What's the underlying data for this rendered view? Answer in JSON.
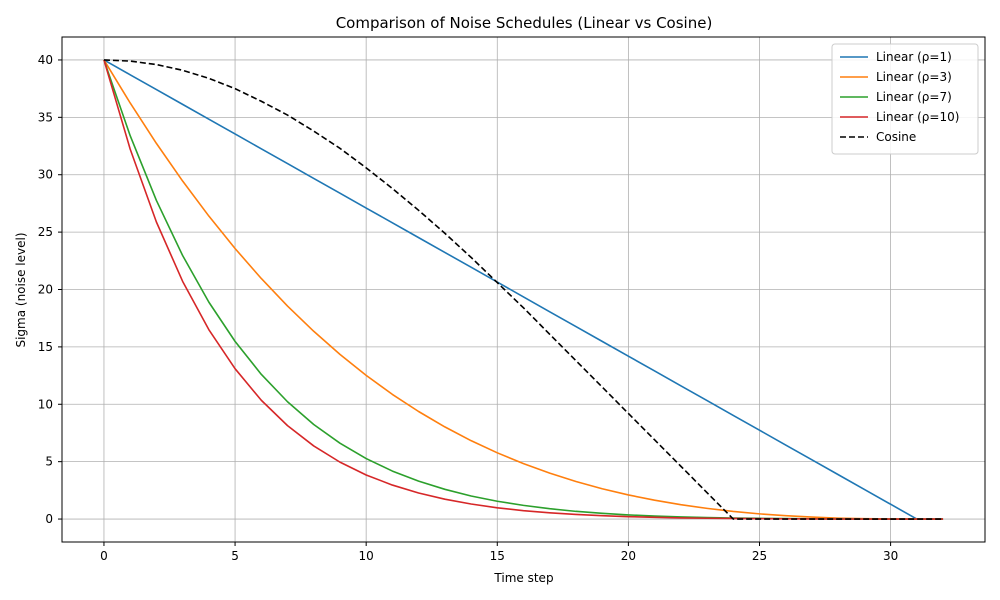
{
  "chart_data": {
    "type": "line",
    "title": "Comparison of Noise Schedules (Linear vs Cosine)",
    "xlabel": "Time step",
    "ylabel": "Sigma (noise level)",
    "xlim": [
      -1.6,
      33.6
    ],
    "ylim": [
      -2,
      42
    ],
    "xticks": [
      0,
      5,
      10,
      15,
      20,
      25,
      30
    ],
    "yticks": [
      0,
      5,
      10,
      15,
      20,
      25,
      30,
      35,
      40
    ],
    "grid": true,
    "legend_position": "top-right",
    "x": [
      0,
      1,
      2,
      3,
      4,
      5,
      6,
      7,
      8,
      9,
      10,
      11,
      12,
      13,
      14,
      15,
      16,
      17,
      18,
      19,
      20,
      21,
      22,
      23,
      24,
      25,
      26,
      27,
      28,
      29,
      30,
      31,
      32
    ],
    "series": [
      {
        "name": "Linear (ρ=1)",
        "color": "#1f77b4",
        "dash": "solid",
        "values": [
          40.0,
          38.71,
          37.42,
          36.13,
          34.84,
          33.55,
          32.26,
          30.97,
          29.68,
          28.39,
          27.1,
          25.81,
          24.52,
          23.23,
          21.94,
          20.65,
          19.35,
          18.06,
          16.77,
          15.48,
          14.19,
          12.9,
          11.61,
          10.32,
          9.03,
          7.74,
          6.45,
          5.16,
          3.87,
          2.58,
          1.29,
          0.0,
          0.0
        ]
      },
      {
        "name": "Linear (ρ=3)",
        "color": "#ff7f0e",
        "dash": "solid",
        "values": [
          40.0,
          36.25,
          32.73,
          29.45,
          26.4,
          23.57,
          20.96,
          18.56,
          16.36,
          14.35,
          12.52,
          10.86,
          9.37,
          8.03,
          6.83,
          5.77,
          4.83,
          4.0,
          3.27,
          2.64,
          2.1,
          1.64,
          1.25,
          0.93,
          0.66,
          0.45,
          0.29,
          0.17,
          0.08,
          0.03,
          0.01,
          0.0,
          0.0
        ]
      },
      {
        "name": "Linear (ρ=7)",
        "color": "#2ca02c",
        "dash": "solid",
        "values": [
          40.0,
          33.4,
          27.76,
          22.96,
          18.9,
          15.48,
          12.61,
          10.22,
          8.24,
          6.61,
          5.27,
          4.18,
          3.3,
          2.59,
          2.01,
          1.55,
          1.19,
          0.9,
          0.67,
          0.5,
          0.36,
          0.26,
          0.18,
          0.13,
          0.09,
          0.06,
          0.04,
          0.02,
          0.01,
          0.0,
          0.0,
          0.0,
          0.0
        ]
      },
      {
        "name": "Linear (ρ=10)",
        "color": "#d62728",
        "dash": "solid",
        "values": [
          40.0,
          32.23,
          25.88,
          20.71,
          16.5,
          13.1,
          10.35,
          8.14,
          6.37,
          4.96,
          3.84,
          2.96,
          2.27,
          1.73,
          1.31,
          0.98,
          0.73,
          0.54,
          0.4,
          0.29,
          0.21,
          0.15,
          0.1,
          0.07,
          0.05,
          0.03,
          0.02,
          0.01,
          0.0,
          0.0,
          0.0,
          0.0,
          0.0
        ]
      },
      {
        "name": "Cosine",
        "color": "#000000",
        "dash": "dashed",
        "values": [
          40.0,
          39.9,
          39.6,
          39.1,
          38.4,
          37.5,
          36.4,
          35.2,
          33.8,
          32.3,
          30.6,
          28.8,
          26.9,
          24.9,
          22.8,
          20.6,
          18.4,
          16.1,
          13.8,
          11.5,
          9.2,
          6.9,
          4.6,
          2.3,
          0.0,
          0.0,
          0.0,
          0.0,
          0.0,
          0.0,
          0.0,
          0.0,
          0.0
        ]
      }
    ]
  }
}
